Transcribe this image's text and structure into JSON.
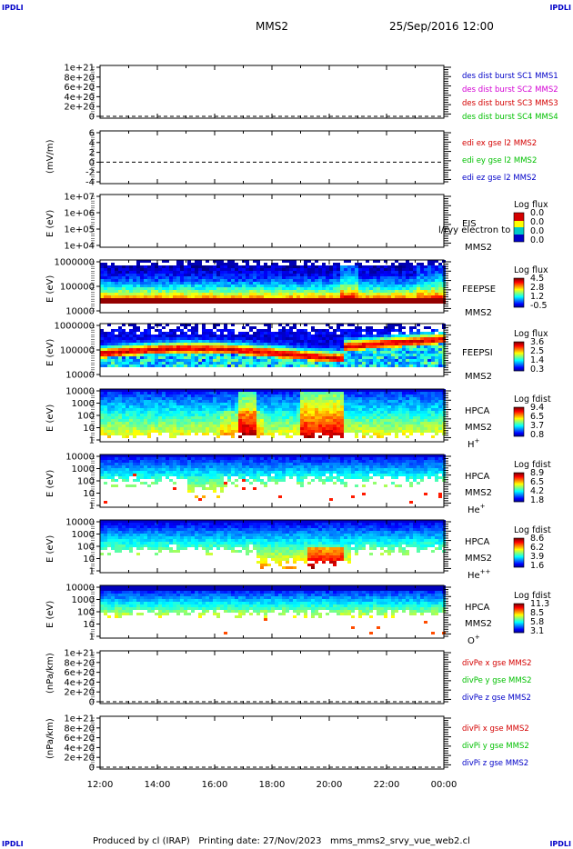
{
  "corner_label": "IPDLI",
  "header": {
    "spacecraft": "MMS2",
    "datetime": "25/Sep/2016 12:00"
  },
  "footer": {
    "text": "Produced by cl (IRAP)   Printing date: 27/Nov/2023   mms_mms2_srvy_vue_web2.cl"
  },
  "colors": {
    "red": "#d40000",
    "magenta": "#d400d4",
    "green": "#00c000",
    "blue": "#0000c8",
    "dashed": "#000000"
  },
  "chart_data": [
    {
      "type": "line",
      "ylabel": "",
      "yticks": [
        "1e+21",
        "8e+20",
        "6e+20",
        "4e+20",
        "2e+20",
        "0"
      ],
      "xlim": [
        "12:00",
        "00:00"
      ],
      "dashed_zero": true,
      "series": [
        {
          "name": "des dist burst SC1 MMS1",
          "color": "blue",
          "values": []
        },
        {
          "name": "des dist burst SC2 MMS2",
          "color": "magenta",
          "values": []
        },
        {
          "name": "des dist burst SC3 MMS3",
          "color": "red",
          "values": []
        },
        {
          "name": "des dist burst SC4 MMS4",
          "color": "green",
          "values": []
        }
      ]
    },
    {
      "type": "line",
      "ylabel": "(mV/m)",
      "yticks": [
        "6",
        "4",
        "2",
        "0",
        "-2",
        "-4"
      ],
      "xlim": [
        "12:00",
        "00:00"
      ],
      "dashed_zero": true,
      "series": [
        {
          "name": "edi ex gse l2 MMS2",
          "color": "red",
          "values": []
        },
        {
          "name": "edi ey gse l2 MMS2",
          "color": "green",
          "values": []
        },
        {
          "name": "edi ez gse l2 MMS2",
          "color": "blue",
          "values": []
        }
      ]
    },
    {
      "type": "heatmap",
      "ylabel": "E (eV)",
      "yticks": [
        "1e+07",
        "1e+06",
        "1e+05",
        "1e+04"
      ],
      "labels": [
        "EIS",
        "MMS2"
      ],
      "overlay_text": "l/rvy electron to",
      "colorbar": {
        "title": "Log flux",
        "values": [
          "0.0",
          "0.0",
          "0.0",
          "0.0"
        ]
      },
      "filled": false
    },
    {
      "type": "heatmap",
      "ylabel": "E (eV)",
      "yticks": [
        "1000000",
        "100000",
        "10000"
      ],
      "labels": [
        "FEEPSE",
        "MMS2"
      ],
      "colorbar": {
        "title": "Log flux",
        "values": [
          "4.5",
          "2.8",
          "1.2",
          "-0.5"
        ]
      },
      "filled": true,
      "profile": "feepse"
    },
    {
      "type": "heatmap",
      "ylabel": "E (eV)",
      "yticks": [
        "1000000",
        "100000",
        "10000"
      ],
      "labels": [
        "FEEPSI",
        "MMS2"
      ],
      "colorbar": {
        "title": "Log flux",
        "values": [
          "3.6",
          "2.5",
          "1.4",
          "0.3"
        ]
      },
      "filled": true,
      "profile": "feepsi"
    },
    {
      "type": "heatmap",
      "ylabel": "E (eV)",
      "yticks": [
        "10000",
        "1000",
        "100",
        "10",
        "1"
      ],
      "labels": [
        "HPCA",
        "MMS2",
        "H+"
      ],
      "colorbar": {
        "title": "Log fdist",
        "values": [
          "9.4",
          "6.5",
          "3.7",
          "0.8"
        ]
      },
      "filled": true,
      "profile": "hplus"
    },
    {
      "type": "heatmap",
      "ylabel": "E (eV)",
      "yticks": [
        "10000",
        "1000",
        "100",
        "10",
        "1"
      ],
      "labels": [
        "HPCA",
        "MMS2",
        "He+"
      ],
      "colorbar": {
        "title": "Log fdist",
        "values": [
          "8.9",
          "6.5",
          "4.2",
          "1.8"
        ]
      },
      "filled": true,
      "profile": "heplus"
    },
    {
      "type": "heatmap",
      "ylabel": "E (eV)",
      "yticks": [
        "10000",
        "1000",
        "100",
        "10",
        "1"
      ],
      "labels": [
        "HPCA",
        "MMS2",
        "He++"
      ],
      "colorbar": {
        "title": "Log fdist",
        "values": [
          "8.6",
          "6.2",
          "3.9",
          "1.6"
        ]
      },
      "filled": true,
      "profile": "heplusplus"
    },
    {
      "type": "heatmap",
      "ylabel": "E (eV)",
      "yticks": [
        "10000",
        "1000",
        "100",
        "10",
        "1"
      ],
      "labels": [
        "HPCA",
        "MMS2",
        "O+"
      ],
      "colorbar": {
        "title": "Log fdist",
        "values": [
          "11.3",
          "8.5",
          "5.8",
          "3.1"
        ]
      },
      "filled": true,
      "profile": "oplus"
    },
    {
      "type": "line",
      "ylabel": "(nPa/km)",
      "yticks": [
        "1e+21",
        "8e+20",
        "6e+20",
        "4e+20",
        "2e+20",
        "0"
      ],
      "xlim": [
        "12:00",
        "00:00"
      ],
      "dashed_zero": true,
      "series": [
        {
          "name": "divPe x gse MMS2",
          "color": "red",
          "values": []
        },
        {
          "name": "divPe y gse MMS2",
          "color": "green",
          "values": []
        },
        {
          "name": "divPe z gse MMS2",
          "color": "blue",
          "values": []
        }
      ]
    },
    {
      "type": "line",
      "ylabel": "(nPa/km)",
      "yticks": [
        "1e+21",
        "8e+20",
        "6e+20",
        "4e+20",
        "2e+20",
        "0"
      ],
      "xlim": [
        "12:00",
        "00:00"
      ],
      "dashed_zero": true,
      "series": [
        {
          "name": "divPi x gse MMS2",
          "color": "red",
          "values": []
        },
        {
          "name": "divPi y gse MMS2",
          "color": "green",
          "values": []
        },
        {
          "name": "divPi z gse MMS2",
          "color": "blue",
          "values": []
        }
      ]
    }
  ],
  "xaxis": {
    "ticks": [
      "12:00",
      "14:00",
      "16:00",
      "18:00",
      "20:00",
      "22:00",
      "00:00"
    ]
  }
}
